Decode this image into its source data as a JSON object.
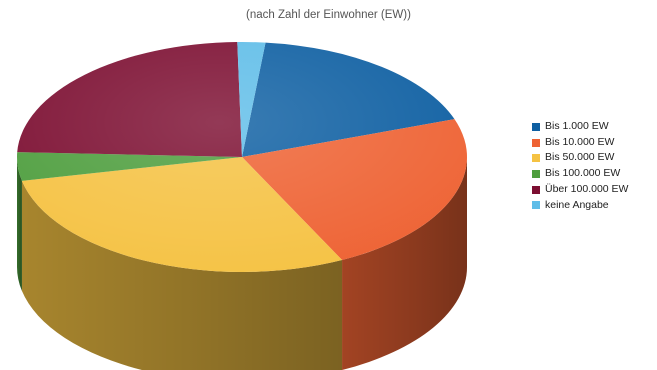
{
  "chart_data": {
    "type": "pie",
    "title": "(nach Zahl der Einwohner (EW))",
    "legend_position": "right",
    "slices": [
      {
        "label": "Bis 1.000 EW",
        "value": 18,
        "color": "#0E5FA2"
      },
      {
        "label": "Bis 10.000 EW",
        "value": 23,
        "color": "#EE6233"
      },
      {
        "label": "Bis 50.000 EW",
        "value": 29,
        "color": "#F5C243"
      },
      {
        "label": "Bis 100.000 EW",
        "value": 4,
        "color": "#4E9E3E"
      },
      {
        "label": "Über 100.000 EW",
        "value": 24,
        "color": "#7C0E31"
      },
      {
        "label": "keine Angabe",
        "value": 2,
        "color": "#5FBDE8"
      }
    ]
  }
}
